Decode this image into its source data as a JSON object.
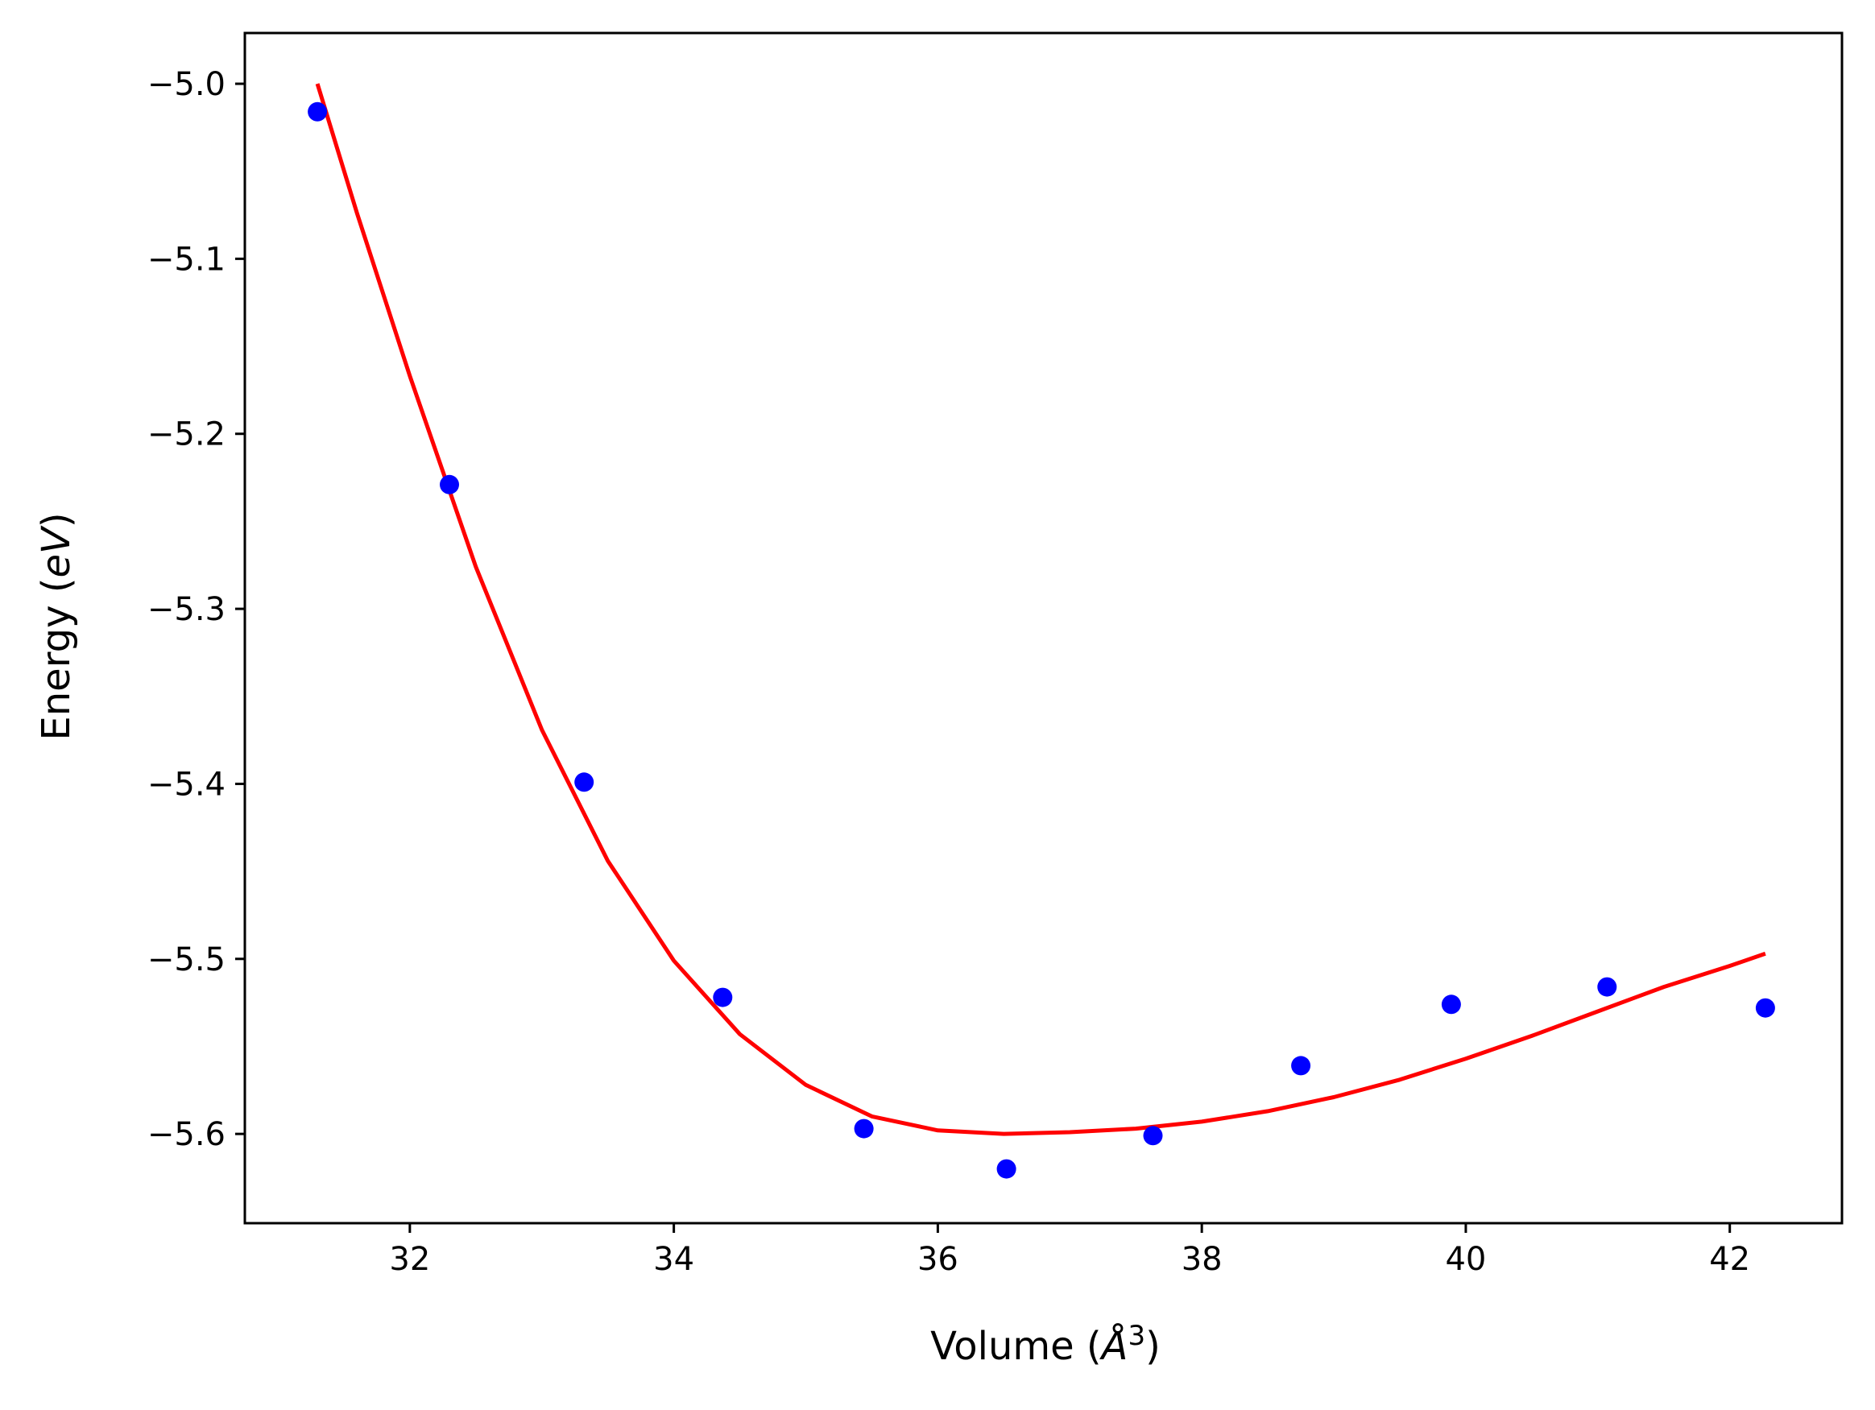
{
  "chart_data": {
    "type": "scatter",
    "title": "",
    "xlabel": {
      "text": "Volume (Å³)",
      "prefix": "Volume (",
      "math": "Å",
      "sup": "3",
      "suffix": ")"
    },
    "ylabel": {
      "text": "Energy (eV)",
      "prefix": "Energy (",
      "math": "eV",
      "suffix": ")"
    },
    "xlim": [
      30.75,
      42.85
    ],
    "ylim": [
      -5.651,
      -4.971
    ],
    "xticks": [
      32,
      34,
      36,
      38,
      40,
      42
    ],
    "xtick_labels": [
      "32",
      "34",
      "36",
      "38",
      "40",
      "42"
    ],
    "yticks": [
      -5.0,
      -5.1,
      -5.2,
      -5.3,
      -5.4,
      -5.5,
      -5.6
    ],
    "ytick_labels": [
      "−5.0",
      "−5.1",
      "−5.2",
      "−5.3",
      "−5.4",
      "−5.5",
      "−5.6"
    ],
    "grid": false,
    "legend": "none",
    "series": [
      {
        "kind": "scatter",
        "color": "#0000ff",
        "x": [
          31.3,
          32.3,
          33.32,
          34.37,
          35.44,
          36.52,
          37.63,
          38.75,
          39.89,
          41.07,
          42.27
        ],
        "y": [
          -5.016,
          -5.229,
          -5.399,
          -5.522,
          -5.597,
          -5.62,
          -5.601,
          -5.561,
          -5.526,
          -5.516,
          -5.528
        ]
      },
      {
        "kind": "line",
        "color": "#ff0000",
        "x": [
          31.3,
          31.6,
          32.0,
          32.5,
          33.0,
          33.5,
          34.0,
          34.5,
          35.0,
          35.5,
          36.0,
          36.5,
          37.0,
          37.5,
          38.0,
          38.5,
          39.0,
          39.5,
          40.0,
          40.5,
          41.0,
          41.5,
          42.0,
          42.27
        ],
        "y": [
          -5.0,
          -5.074,
          -5.167,
          -5.276,
          -5.369,
          -5.444,
          -5.501,
          -5.543,
          -5.572,
          -5.59,
          -5.598,
          -5.6,
          -5.599,
          -5.597,
          -5.593,
          -5.587,
          -5.579,
          -5.569,
          -5.557,
          -5.544,
          -5.53,
          -5.516,
          -5.504,
          -5.497
        ]
      }
    ]
  }
}
